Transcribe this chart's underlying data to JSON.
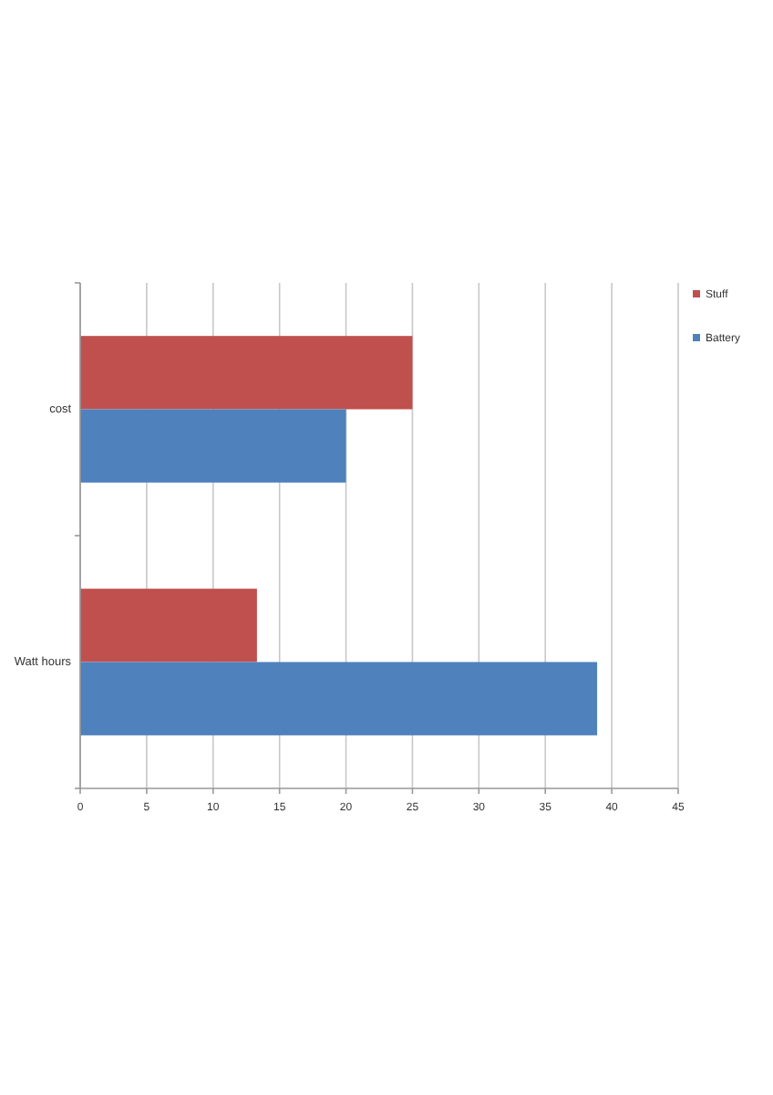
{
  "chart_data": {
    "type": "bar",
    "orientation": "horizontal",
    "categories": [
      "cost",
      "Watt hours"
    ],
    "series": [
      {
        "name": "Stuff",
        "color": "#c0504d",
        "values": [
          25,
          13.3
        ]
      },
      {
        "name": "Battery",
        "color": "#4f81bd",
        "values": [
          20,
          38.9
        ]
      }
    ],
    "xlim": [
      0,
      45
    ],
    "xticks": [
      0,
      5,
      10,
      15,
      20,
      25,
      30,
      35,
      40,
      45
    ],
    "grid": "x",
    "legend": "top right"
  }
}
